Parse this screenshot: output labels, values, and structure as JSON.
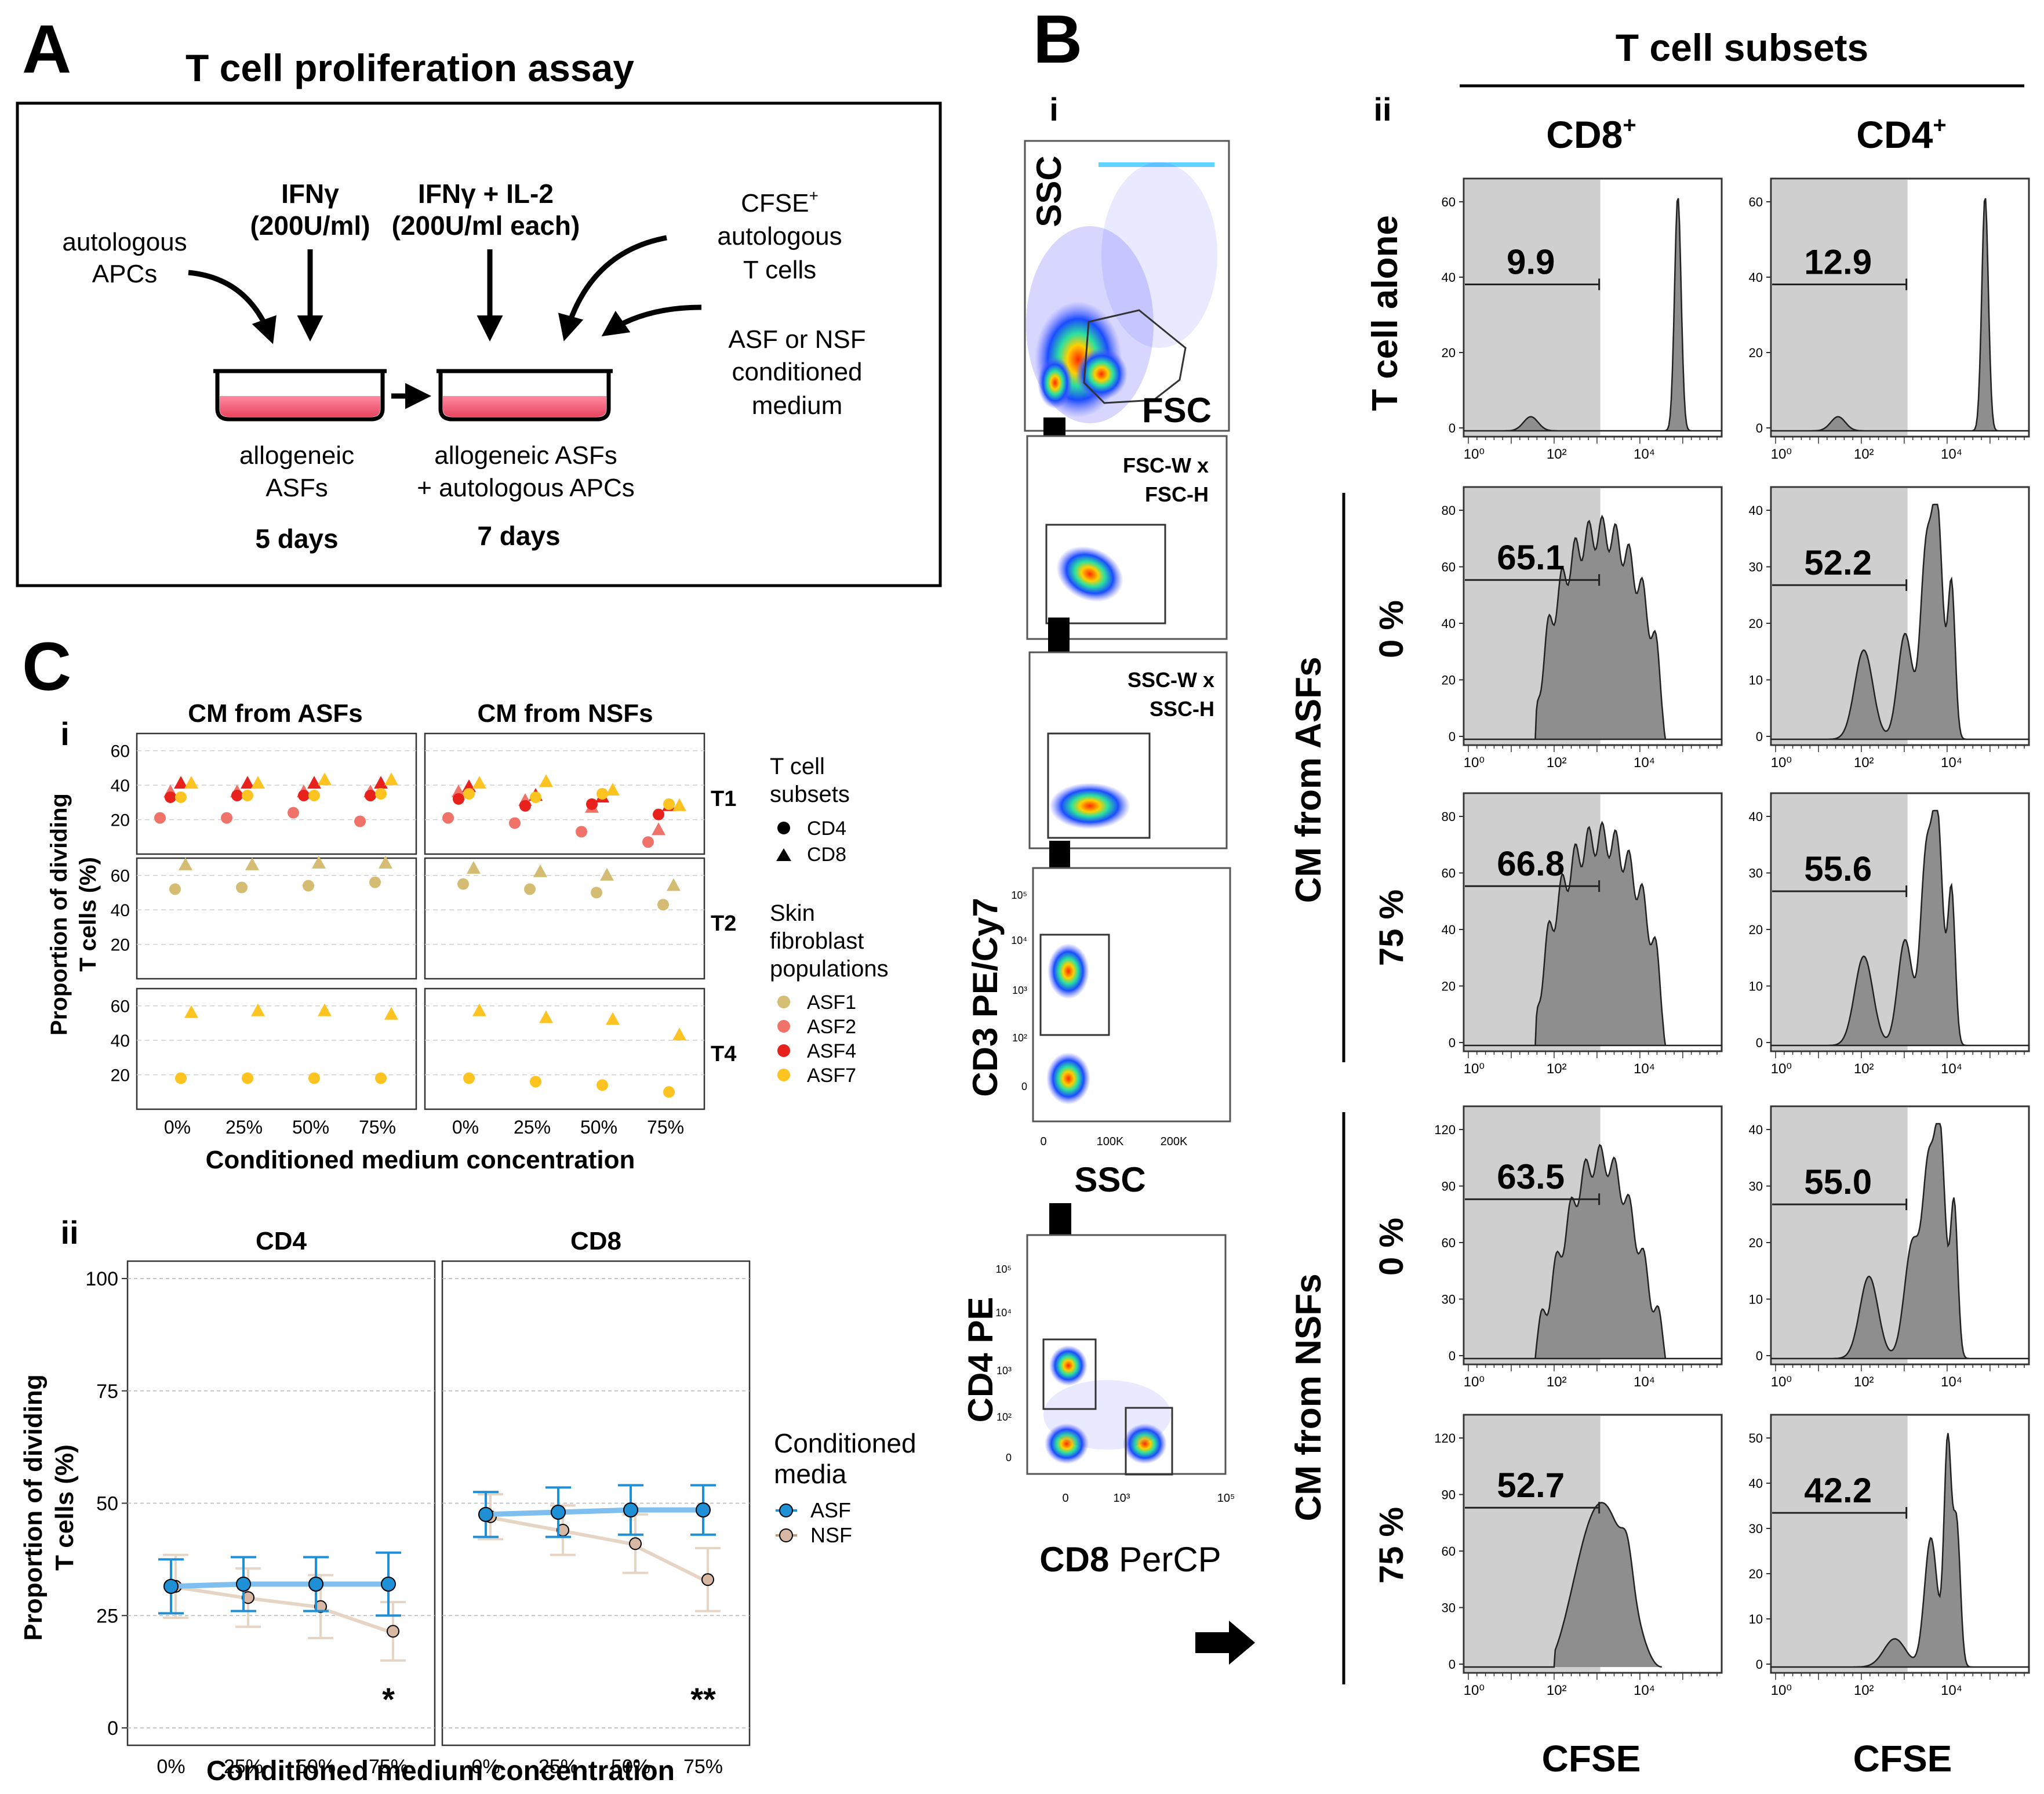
{
  "colors": {
    "cd4": "#e7e7e7",
    "asf1": "#d4bd72",
    "asf2": "#f0736a",
    "asf4": "#e8211d",
    "asf7": "#fdc321",
    "asf_line": "#1f8fd6",
    "asf_line_light": "#7fbff0",
    "nsf_line": "#b89a82",
    "nsf_line_light": "#e6d4c4",
    "dish": "#f25a74",
    "hist_fill": "#8e8e8e",
    "gate_shade": "#cfcfcf"
  },
  "panelA": {
    "letter": "A",
    "title": "T cell proliferation assay",
    "ifn_label": "IFNγ",
    "ifn_dose": "(200U/ml)",
    "ifn_il2_label": "IFNγ + IL-2",
    "ifn_il2_dose": "(200U/ml each)",
    "apc_label_1": "autologous",
    "apc_label_2": "APCs",
    "cfse_label_1": "CFSE",
    "cfse_label_sup": "+",
    "cfse_label_2": "autologous",
    "cfse_label_3": "T cells",
    "medium_label_1": "ASF or NSF",
    "medium_label_2": "conditioned",
    "medium_label_3": "medium",
    "dish1_label_1": "allogeneic",
    "dish1_label_2": "ASFs",
    "dish2_label_1": "allogeneic ASFs",
    "dish2_label_2": "+ autologous APCs",
    "days1": "5 days",
    "days2": "7 days"
  },
  "panelB": {
    "letter": "B",
    "sub_i": "i",
    "sub_ii": "ii",
    "subsets_title": "T cell subsets",
    "col_cd8": "CD8",
    "col_cd4": "CD4",
    "col_sup": "+",
    "gate1_y": "SSC",
    "gate1_x": "FSC",
    "gate2_1": "FSC-W x",
    "gate2_2": "FSC-H",
    "gate3_1": "SSC-W x",
    "gate3_2": "SSC-H",
    "gate4_y": "CD3 PE/Cy7",
    "gate4_x": "SSC",
    "gate4_ticks_x": [
      "0",
      "100K",
      "200K"
    ],
    "gate4_ticks_y": [
      "10⁵",
      "10⁴",
      "10³",
      "10²",
      "0"
    ],
    "gate5_y": "CD4 PE",
    "gate5_x_bold": "CD8",
    "gate5_x_rest": " PerCP",
    "gate5_ticks_x": [
      "0",
      "10³",
      "10⁵"
    ],
    "gate5_ticks_y": [
      "10⁵",
      "10⁴",
      "10³",
      "10²",
      "0"
    ],
    "row_t_alone": "T cell alone",
    "group_asf": "CM from ASFs",
    "group_nsf": "CM from NSFs",
    "conc_0": "0 %",
    "conc_75": "75 %",
    "x_axis_label": "CFSE",
    "x_ticks": [
      "10⁰",
      "10²",
      "10⁴"
    ],
    "histograms": [
      {
        "row": "t_alone",
        "subset": "CD8",
        "value": "9.9",
        "y_ticks": [
          "60",
          "40",
          "20",
          "0"
        ]
      },
      {
        "row": "t_alone",
        "subset": "CD4",
        "value": "12.9",
        "y_ticks": [
          "60",
          "40",
          "20",
          "0"
        ]
      },
      {
        "row": "asf_0",
        "subset": "CD8",
        "value": "65.1",
        "y_ticks": [
          "80",
          "60",
          "40",
          "20",
          "0"
        ]
      },
      {
        "row": "asf_0",
        "subset": "CD4",
        "value": "52.2",
        "y_ticks": [
          "40",
          "30",
          "20",
          "10",
          "0"
        ]
      },
      {
        "row": "asf_75",
        "subset": "CD8",
        "value": "66.8",
        "y_ticks": [
          "80",
          "60",
          "40",
          "20",
          "0"
        ]
      },
      {
        "row": "asf_75",
        "subset": "CD4",
        "value": "55.6",
        "y_ticks": [
          "40",
          "30",
          "20",
          "10",
          "0"
        ]
      },
      {
        "row": "nsf_0",
        "subset": "CD8",
        "value": "63.5",
        "y_ticks": [
          "120",
          "90",
          "60",
          "30",
          "0"
        ]
      },
      {
        "row": "nsf_0",
        "subset": "CD4",
        "value": "55.0",
        "y_ticks": [
          "40",
          "30",
          "20",
          "10",
          "0"
        ]
      },
      {
        "row": "nsf_75",
        "subset": "CD8",
        "value": "52.7",
        "y_ticks": [
          "120",
          "90",
          "60",
          "30",
          "0"
        ]
      },
      {
        "row": "nsf_75",
        "subset": "CD4",
        "value": "42.2",
        "y_ticks": [
          "50",
          "40",
          "30",
          "20",
          "10",
          "0"
        ]
      }
    ]
  },
  "panelC": {
    "letter": "C",
    "sub_i": "i",
    "sub_ii": "ii",
    "col_asf": "CM from ASFs",
    "col_nsf": "CM from NSFs",
    "ylabel_1": "Proportion of dividing",
    "ylabel_2": "T cells (%)",
    "xlabel": "Conditioned medium concentration",
    "legend_subsets_1": "T cell",
    "legend_subsets_2": "subsets",
    "legend_cd4": "CD4",
    "legend_cd8": "CD8",
    "legend_pop_1": "Skin",
    "legend_pop_2": "fibroblast",
    "legend_pop_3": "populations",
    "legend_asf": [
      "ASF1",
      "ASF2",
      "ASF4",
      "ASF7"
    ],
    "cm_legend_1": "Conditioned",
    "cm_legend_2": "media",
    "cm_legend_asf": "ASF",
    "cm_legend_nsf": "NSF",
    "star1": "*",
    "star2": "**"
  },
  "chart_data": [
    {
      "type": "scatter",
      "title": "C i — Proportion of dividing T cells by T cell subset and skin fibroblast population",
      "facets_cols": [
        "CM from ASFs",
        "CM from NSFs"
      ],
      "facets_rows": [
        "T1",
        "T2",
        "T4"
      ],
      "categories": [
        "0%",
        "25%",
        "50%",
        "75%"
      ],
      "xlabel": "Conditioned medium concentration",
      "ylabel": "Proportion of dividing T cells (%)",
      "ylim": [
        0,
        70
      ],
      "yticks": [
        20,
        40,
        60
      ],
      "legend": {
        "shape": [
          "CD4",
          "CD8"
        ],
        "color": [
          "ASF1",
          "ASF2",
          "ASF4",
          "ASF7"
        ]
      },
      "points": [
        {
          "col": "CM from ASFs",
          "row": "T1",
          "pop": "ASF2",
          "subset": "CD4",
          "values": [
            21,
            21,
            24,
            19
          ]
        },
        {
          "col": "CM from ASFs",
          "row": "T1",
          "pop": "ASF2",
          "subset": "CD8",
          "values": [
            36,
            36,
            36,
            36
          ]
        },
        {
          "col": "CM from ASFs",
          "row": "T1",
          "pop": "ASF4",
          "subset": "CD4",
          "values": [
            33,
            34,
            34,
            34
          ]
        },
        {
          "col": "CM from ASFs",
          "row": "T1",
          "pop": "ASF4",
          "subset": "CD8",
          "values": [
            41,
            41,
            41,
            41
          ]
        },
        {
          "col": "CM from ASFs",
          "row": "T1",
          "pop": "ASF7",
          "subset": "CD4",
          "values": [
            33,
            34,
            34,
            35
          ]
        },
        {
          "col": "CM from ASFs",
          "row": "T1",
          "pop": "ASF7",
          "subset": "CD8",
          "values": [
            41,
            41,
            43,
            43
          ]
        },
        {
          "col": "CM from NSFs",
          "row": "T1",
          "pop": "ASF2",
          "subset": "CD4",
          "values": [
            21,
            18,
            13,
            7
          ]
        },
        {
          "col": "CM from NSFs",
          "row": "T1",
          "pop": "ASF2",
          "subset": "CD8",
          "values": [
            36,
            31,
            27,
            14
          ]
        },
        {
          "col": "CM from NSFs",
          "row": "T1",
          "pop": "ASF4",
          "subset": "CD4",
          "values": [
            32,
            28,
            29,
            23
          ]
        },
        {
          "col": "CM from NSFs",
          "row": "T1",
          "pop": "ASF4",
          "subset": "CD8",
          "values": [
            39,
            34,
            33,
            28
          ]
        },
        {
          "col": "CM from NSFs",
          "row": "T1",
          "pop": "ASF7",
          "subset": "CD4",
          "values": [
            35,
            33,
            35,
            29
          ]
        },
        {
          "col": "CM from NSFs",
          "row": "T1",
          "pop": "ASF7",
          "subset": "CD8",
          "values": [
            41,
            42,
            37,
            28
          ]
        },
        {
          "col": "CM from ASFs",
          "row": "T2",
          "pop": "ASF1",
          "subset": "CD4",
          "values": [
            52,
            53,
            54,
            56
          ]
        },
        {
          "col": "CM from ASFs",
          "row": "T2",
          "pop": "ASF1",
          "subset": "CD8",
          "values": [
            66,
            66,
            67,
            67
          ]
        },
        {
          "col": "CM from NSFs",
          "row": "T2",
          "pop": "ASF1",
          "subset": "CD4",
          "values": [
            55,
            52,
            50,
            43
          ]
        },
        {
          "col": "CM from NSFs",
          "row": "T2",
          "pop": "ASF1",
          "subset": "CD8",
          "values": [
            64,
            62,
            60,
            54
          ]
        },
        {
          "col": "CM from ASFs",
          "row": "T4",
          "pop": "ASF7",
          "subset": "CD4",
          "values": [
            18,
            18,
            18,
            18
          ]
        },
        {
          "col": "CM from ASFs",
          "row": "T4",
          "pop": "ASF7",
          "subset": "CD8",
          "values": [
            56,
            57,
            57,
            55
          ]
        },
        {
          "col": "CM from NSFs",
          "row": "T4",
          "pop": "ASF7",
          "subset": "CD4",
          "values": [
            18,
            16,
            14,
            10
          ]
        },
        {
          "col": "CM from NSFs",
          "row": "T4",
          "pop": "ASF7",
          "subset": "CD8",
          "values": [
            57,
            53,
            52,
            43
          ]
        }
      ]
    },
    {
      "type": "line",
      "title": "C ii — Proportion of dividing T cells by conditioned media",
      "facets": [
        "CD4",
        "CD8"
      ],
      "categories": [
        "0%",
        "25%",
        "50%",
        "75%"
      ],
      "xlabel": "Conditioned medium concentration",
      "ylabel": "Proportion of dividing T cells (%)",
      "ylim": [
        0,
        100
      ],
      "yticks": [
        0,
        25,
        50,
        75,
        100
      ],
      "series": [
        {
          "facet": "CD4",
          "name": "ASF",
          "values": [
            31.5,
            32,
            32,
            32
          ],
          "err": [
            6,
            6,
            6,
            7
          ]
        },
        {
          "facet": "CD4",
          "name": "NSF",
          "values": [
            31.5,
            29,
            27,
            21.5
          ],
          "err": [
            7,
            6.5,
            7,
            6.5
          ]
        },
        {
          "facet": "CD8",
          "name": "ASF",
          "values": [
            47.5,
            48,
            48.5,
            48.5
          ],
          "err": [
            5,
            5.5,
            5.5,
            5.5
          ]
        },
        {
          "facet": "CD8",
          "name": "NSF",
          "values": [
            47,
            44,
            41,
            33
          ],
          "err": [
            5,
            5.5,
            6.5,
            7
          ]
        }
      ],
      "annotations": [
        {
          "facet": "CD4",
          "category": "75%",
          "text": "*"
        },
        {
          "facet": "CD8",
          "category": "75%",
          "text": "**"
        }
      ]
    }
  ]
}
